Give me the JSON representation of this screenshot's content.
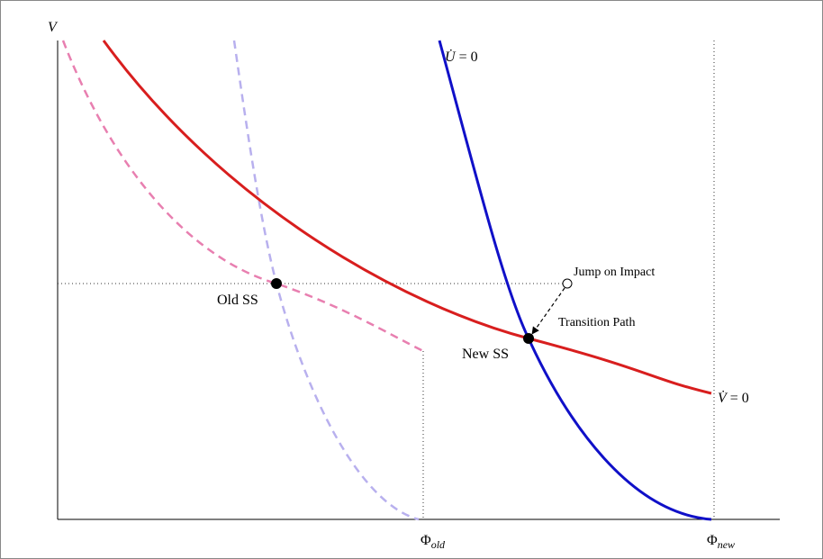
{
  "axes": {
    "y_label": "V",
    "x_ticks": [
      {
        "symbol": "Φ",
        "subscript": "old"
      },
      {
        "symbol": "Φ",
        "subscript": "new"
      }
    ]
  },
  "curves": {
    "u_dot": {
      "letter": "U̇",
      "equation": "= 0"
    },
    "v_dot": {
      "letter": "V̇",
      "equation": "= 0"
    }
  },
  "points": {
    "old": "Old SS",
    "new": "New SS"
  },
  "annotations": {
    "jump": "Jump on Impact",
    "transition": "Transition Path"
  }
}
